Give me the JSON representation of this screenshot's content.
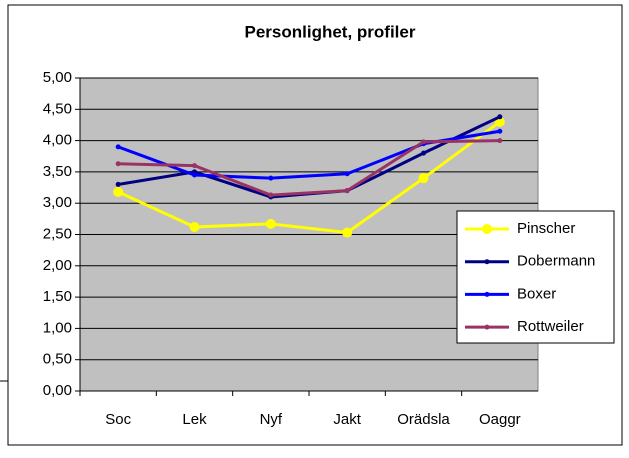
{
  "chart_data": {
    "type": "line",
    "title": "Personlighet, profiler",
    "categories": [
      "Soc",
      "Lek",
      "Nyf",
      "Jakt",
      "Orädsla",
      "Oaggr"
    ],
    "series": [
      {
        "name": "Pinscher",
        "color": "#ffff00",
        "values": [
          3.18,
          2.62,
          2.67,
          2.53,
          3.4,
          4.3
        ]
      },
      {
        "name": "Dobermann",
        "color": "#000080",
        "values": [
          3.3,
          3.5,
          3.1,
          3.2,
          3.8,
          4.38
        ]
      },
      {
        "name": "Boxer",
        "color": "#0000ff",
        "values": [
          3.9,
          3.45,
          3.4,
          3.47,
          3.95,
          4.15
        ]
      },
      {
        "name": "Rottweiler",
        "color": "#993366",
        "values": [
          3.63,
          3.6,
          3.13,
          3.2,
          3.98,
          4.0
        ]
      }
    ],
    "ylim": [
      0,
      5
    ],
    "yticks": [
      {
        "value": 0,
        "label": "0,00"
      },
      {
        "value": 0.5,
        "label": "0,50"
      },
      {
        "value": 1,
        "label": "1,00"
      },
      {
        "value": 1.5,
        "label": "1,50"
      },
      {
        "value": 2,
        "label": "2,00"
      },
      {
        "value": 2.5,
        "label": "2,50"
      },
      {
        "value": 3,
        "label": "3,00"
      },
      {
        "value": 3.5,
        "label": "3,50"
      },
      {
        "value": 4,
        "label": "4,00"
      },
      {
        "value": 4.5,
        "label": "4,50"
      },
      {
        "value": 5,
        "label": "5,00"
      }
    ],
    "grid": true,
    "plot_background": "#c0c0c0",
    "legend": "right"
  }
}
